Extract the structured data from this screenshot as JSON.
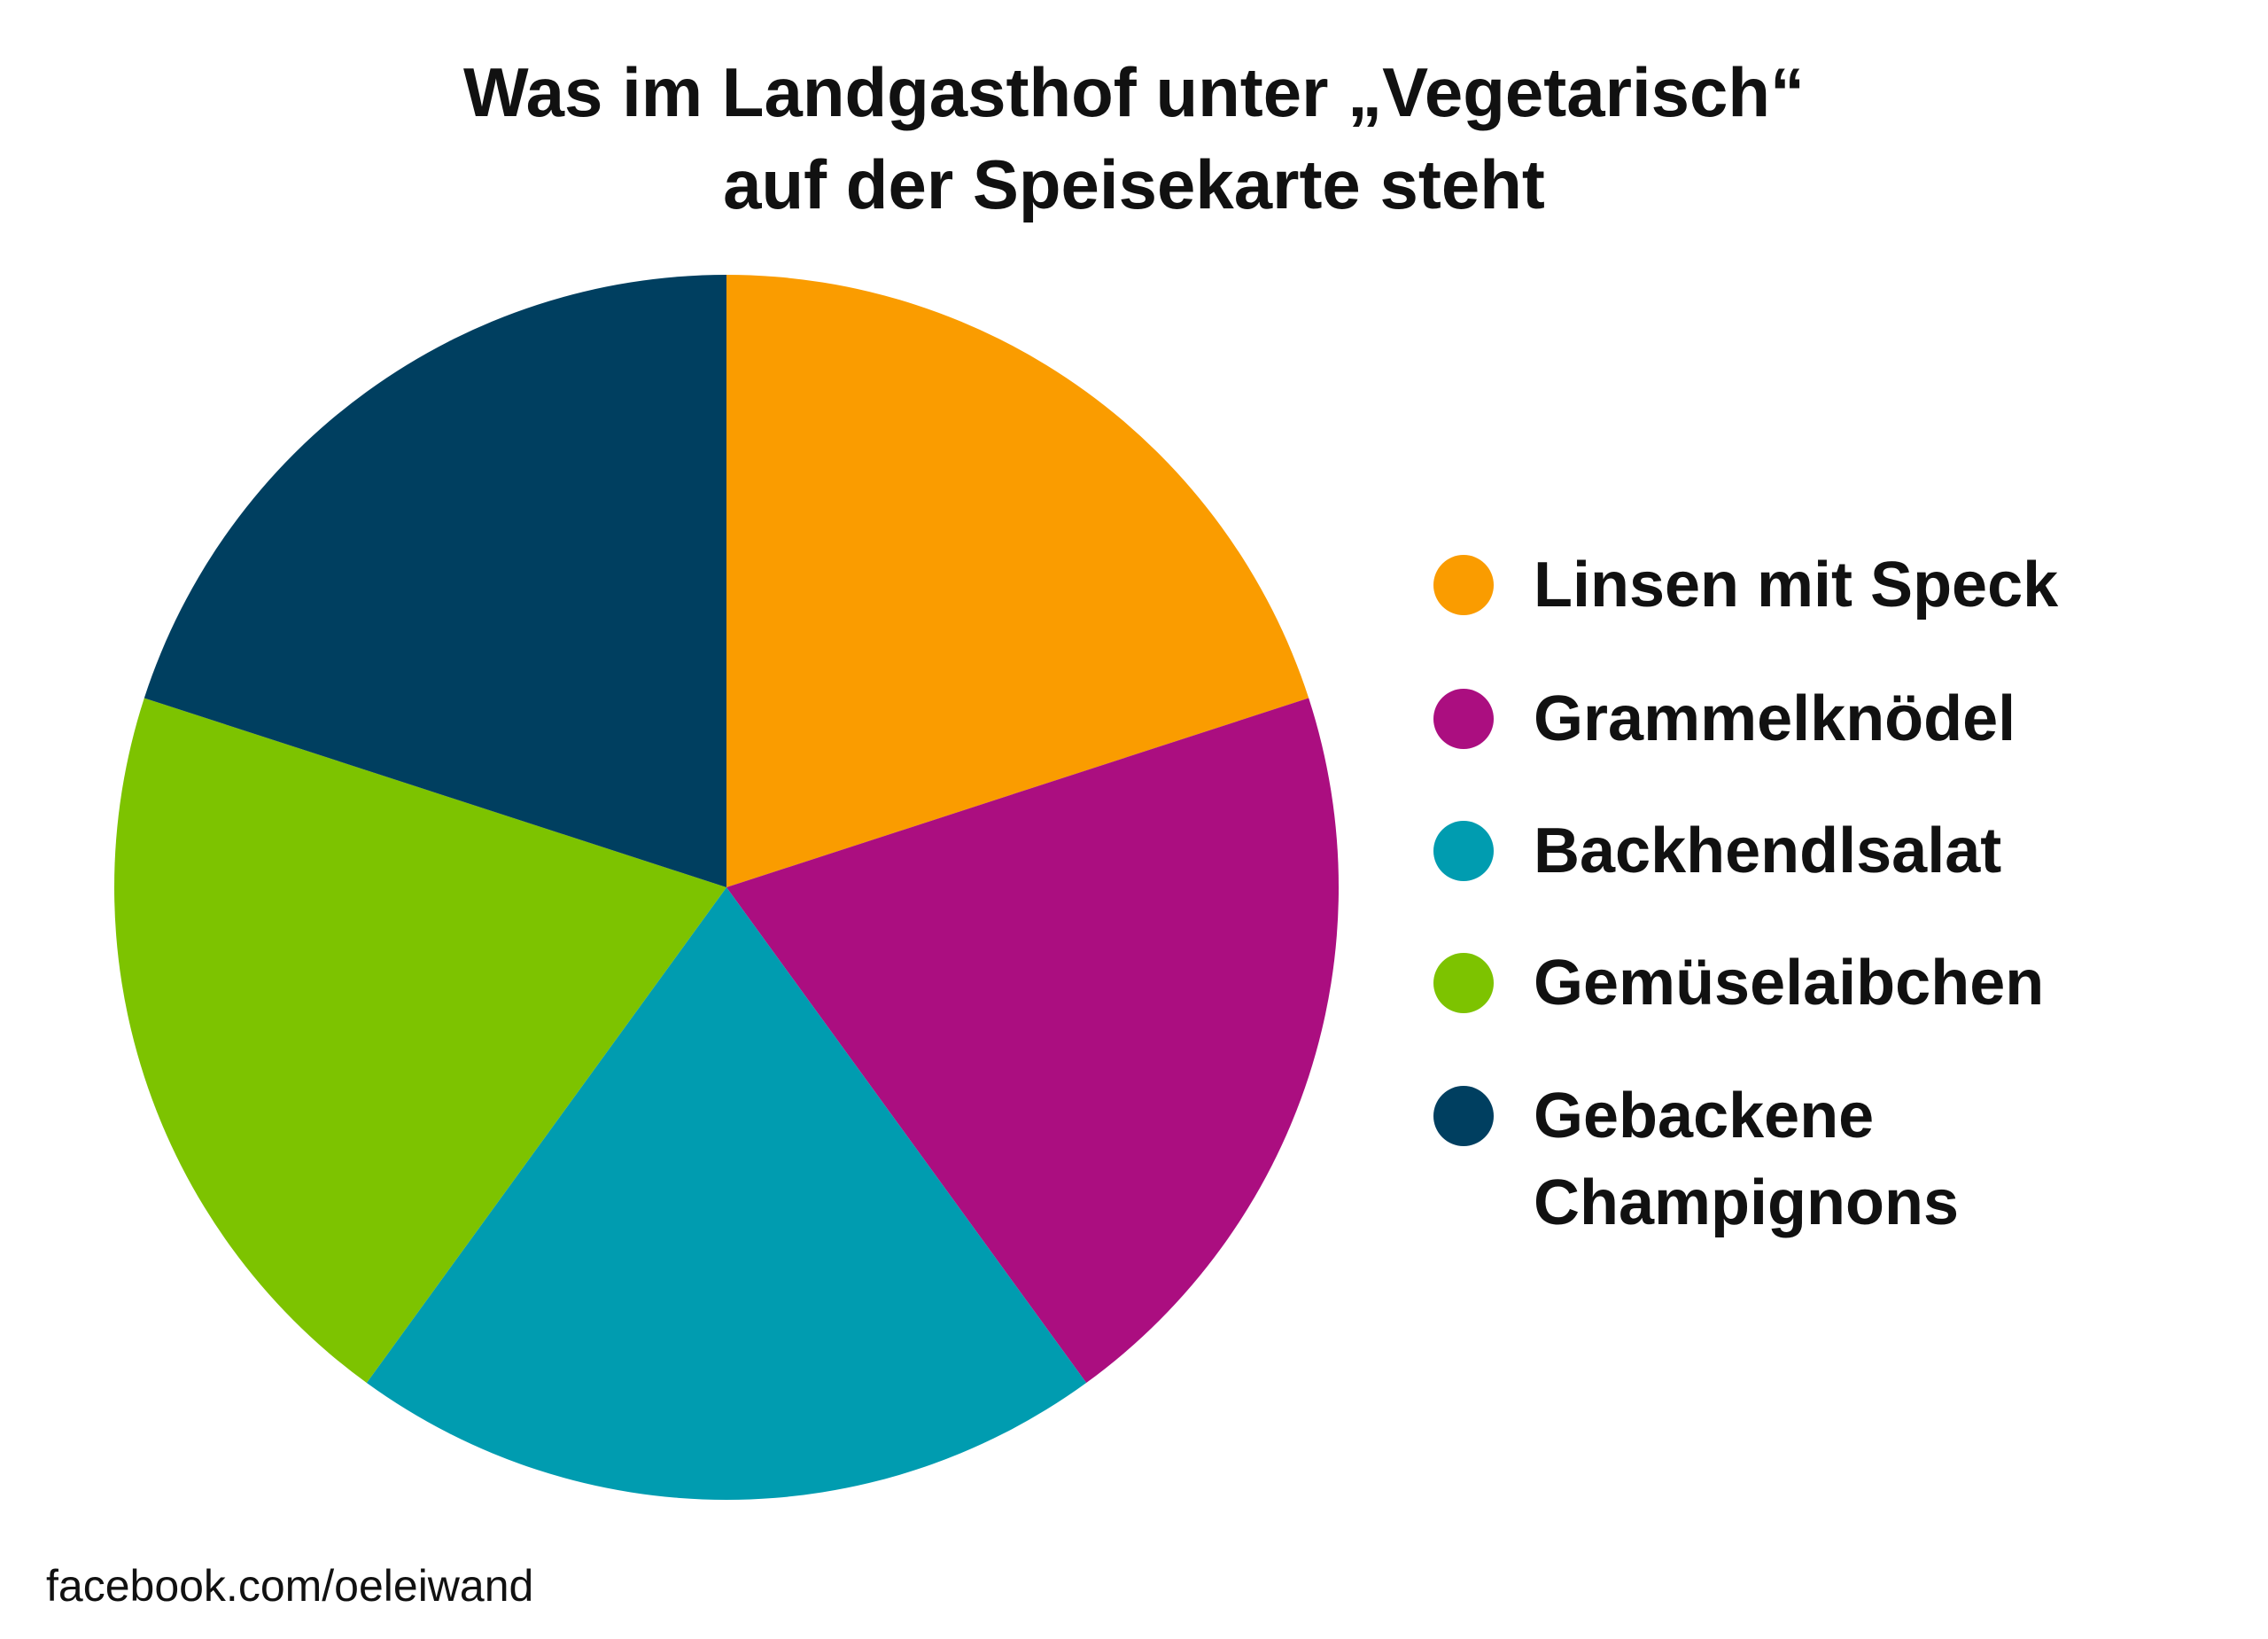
{
  "chart_data": {
    "type": "pie",
    "title": "Was im Landgasthof unter „Vegetarisch“\nauf der Speisekarte steht",
    "categories": [
      "Linsen mit Speck",
      "Grammelknödel",
      "Backhendlsalat",
      "Gemüselaibchen",
      "Gebackene\nChampignons"
    ],
    "values": [
      20,
      20,
      20,
      20,
      20
    ],
    "colors": [
      "#FA9C00",
      "#AB0E80",
      "#009CB0",
      "#7DC300",
      "#003F60"
    ],
    "legend": "right",
    "source": "facebook.com/oeleiwand"
  }
}
